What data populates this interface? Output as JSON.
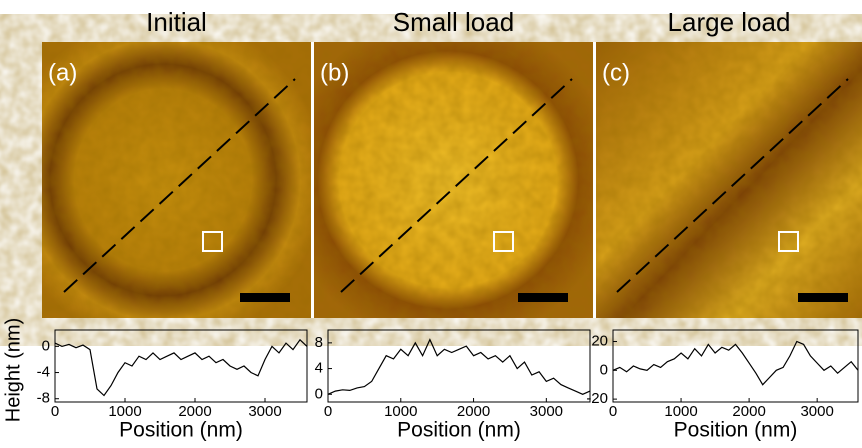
{
  "chart_data": [
    {
      "type": "line",
      "title": "Initial",
      "panel_label": "(a)",
      "xlabel": "Position (nm)",
      "ylabel": "Height (nm)",
      "color": "#000000",
      "x": [
        0,
        100,
        200,
        300,
        400,
        500,
        600,
        700,
        800,
        900,
        1000,
        1100,
        1200,
        1300,
        1400,
        1500,
        1600,
        1700,
        1800,
        1900,
        2000,
        2100,
        2200,
        2300,
        2400,
        2500,
        2600,
        2700,
        2800,
        2900,
        3000,
        3100,
        3200,
        3300,
        3400,
        3500,
        3600
      ],
      "values": [
        0.5,
        0,
        0.3,
        -0.2,
        0.2,
        -0.5,
        -6.5,
        -7.5,
        -6,
        -4,
        -2.5,
        -3,
        -1.5,
        -2,
        -1,
        -2,
        -1.5,
        -1,
        -2,
        -1.5,
        -1,
        -2,
        -1.5,
        -2.5,
        -2,
        -3,
        -3.5,
        -3,
        -4,
        -4.5,
        -2,
        0,
        -1,
        0.5,
        -0.5,
        1,
        0
      ],
      "xlim": [
        0,
        3600
      ],
      "xticks": [
        0,
        1000,
        2000,
        3000
      ],
      "ylim": [
        -8.5,
        2.5
      ],
      "yticks": [
        0,
        -4,
        -8
      ]
    },
    {
      "type": "line",
      "title": "Small load",
      "panel_label": "(b)",
      "xlabel": "Position (nm)",
      "color": "#000000",
      "x": [
        0,
        100,
        200,
        300,
        400,
        500,
        600,
        700,
        800,
        900,
        1000,
        1100,
        1200,
        1300,
        1400,
        1500,
        1600,
        1700,
        1800,
        1900,
        2000,
        2100,
        2200,
        2300,
        2400,
        2500,
        2600,
        2700,
        2800,
        2900,
        3000,
        3100,
        3200,
        3300,
        3400,
        3500,
        3600
      ],
      "values": [
        0,
        0.5,
        0.7,
        0.6,
        1,
        1.2,
        2,
        4,
        6,
        5.5,
        7,
        6,
        8,
        6,
        8.5,
        6,
        7,
        6.5,
        7,
        7.5,
        6,
        6.5,
        5.5,
        6,
        5,
        6,
        4,
        5,
        3,
        3.5,
        2,
        2.5,
        1.5,
        1,
        0.5,
        0,
        0.5
      ],
      "xlim": [
        0,
        3600
      ],
      "xticks": [
        0,
        1000,
        2000,
        3000
      ],
      "ylim": [
        -1.2,
        10
      ],
      "yticks": [
        0,
        4,
        8
      ]
    },
    {
      "type": "line",
      "title": "Large load",
      "panel_label": "(c)",
      "xlabel": "Position (nm)",
      "color": "#000000",
      "x": [
        0,
        100,
        200,
        300,
        400,
        500,
        600,
        700,
        800,
        900,
        1000,
        1100,
        1200,
        1300,
        1400,
        1500,
        1600,
        1700,
        1800,
        1900,
        2000,
        2100,
        2200,
        2300,
        2400,
        2500,
        2600,
        2700,
        2800,
        2900,
        3000,
        3100,
        3200,
        3300,
        3400,
        3500,
        3600
      ],
      "values": [
        0,
        2,
        -1,
        3,
        1,
        0,
        4,
        2,
        6,
        8,
        12,
        8,
        15,
        10,
        18,
        12,
        16,
        14,
        18,
        12,
        5,
        -2,
        -10,
        -5,
        0,
        2,
        10,
        20,
        18,
        10,
        5,
        0,
        3,
        -2,
        2,
        6,
        0
      ],
      "xlim": [
        0,
        3600
      ],
      "xticks": [
        0,
        1000,
        2000,
        3000
      ],
      "ylim": [
        -22,
        28
      ],
      "yticks": [
        -20,
        0,
        20
      ]
    }
  ]
}
